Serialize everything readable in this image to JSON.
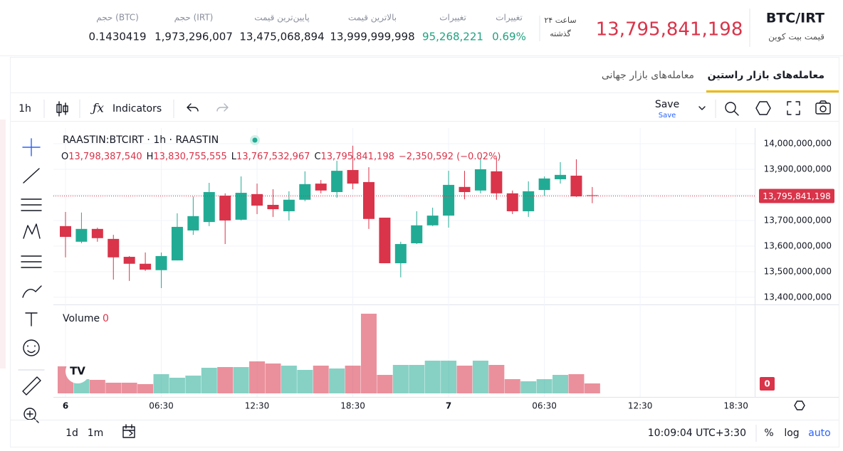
{
  "header": {
    "pair": "BTC/IRT",
    "pair_subtitle": "قیمت بیت کوین",
    "price": "13,795,841,198",
    "period": [
      "۲۴ ساعت",
      "گذشته"
    ],
    "stats": [
      {
        "label": "تغییرات",
        "value": "0.69%"
      },
      {
        "label": "تغییرات",
        "value": "95,268,221"
      },
      {
        "label": "بالاترین قیمت",
        "value": "13,999,999,998"
      },
      {
        "label": "پایین‌ترین قیمت",
        "value": "13,475,068,894"
      },
      {
        "label": "حجم (IRT)",
        "value": "1,973,296,007"
      },
      {
        "label": "حجم (BTC)",
        "value": "0.1430419"
      }
    ]
  },
  "tabs": [
    "معامله‌های بازار راستین",
    "معامله‌های بازار جهانی"
  ],
  "toolbar": {
    "interval": "1h",
    "indicators": "Indicators",
    "save": "Save",
    "save_sub": "Save"
  },
  "chart_data": {
    "type": "candlestick",
    "legend_title": "RAASTIN:BTCIRT · 1h · RAASTIN",
    "legend": [
      {
        "key": "O",
        "value": "13,798,387,540"
      },
      {
        "key": "H",
        "value": "13,830,755,555"
      },
      {
        "key": "L",
        "value": "13,767,532,967"
      },
      {
        "key": "C",
        "value": "13,795,841,198"
      }
    ],
    "change": "−2,350,592 (−0.02%)",
    "last_price_label": "13,795,841,198",
    "volume_title": "Volume",
    "volume_value": "0",
    "volume_tag": "0",
    "x_axis_labels": [
      "6",
      "06:30",
      "12:30",
      "18:30",
      "7",
      "06:30",
      "12:30",
      "18:30"
    ],
    "up_color": "#22ab94",
    "down_color": "#d9344a",
    "ylim": [
      13372000000,
      14061000000
    ],
    "yticks": [
      {
        "value": 14000000000,
        "label": "14,000,000,000"
      },
      {
        "value": 13900000000,
        "label": "13,900,000,000"
      },
      {
        "value": 13800000000,
        "label": "13,800,000,000"
      },
      {
        "value": 13700000000,
        "label": "13,700,000,000"
      },
      {
        "value": 13600000000,
        "label": "13,600,000,000"
      },
      {
        "value": 13500000000,
        "label": "13,500,000,000"
      },
      {
        "value": 13400000000,
        "label": "13,400,000,000"
      }
    ],
    "grid": true,
    "open": [
      13678000000,
      13617000000,
      13667000000,
      13628000000,
      13558000000,
      13531000000,
      13506000000,
      13544000000,
      13661000000,
      13694000000,
      13797000000,
      13703000000,
      13803000000,
      13761000000,
      13736000000,
      13781000000,
      13844000000,
      13811000000,
      13897000000,
      13850000000,
      13711000000,
      13533000000,
      13611000000,
      13681000000,
      13719000000,
      13831000000,
      13817000000,
      13892000000,
      13806000000,
      13736000000,
      13819000000,
      13861000000,
      13875000000,
      13798387540
    ],
    "high": [
      13733000000,
      13731000000,
      13672000000,
      13644000000,
      13561000000,
      13575000000,
      13575000000,
      13728000000,
      13794000000,
      13847000000,
      13806000000,
      13872000000,
      13844000000,
      13822000000,
      13814000000,
      13892000000,
      13858000000,
      13933000000,
      13992000000,
      13908000000,
      13711000000,
      13617000000,
      13736000000,
      13750000000,
      13894000000,
      13894000000,
      13944000000,
      13944000000,
      13817000000,
      13853000000,
      13872000000,
      13928000000,
      13939000000,
      13830755555
    ],
    "low": [
      13556000000,
      13611000000,
      13617000000,
      13469000000,
      13464000000,
      13503000000,
      13436000000,
      13544000000,
      13644000000,
      13678000000,
      13608000000,
      13700000000,
      13725000000,
      13714000000,
      13700000000,
      13775000000,
      13806000000,
      13789000000,
      13822000000,
      13667000000,
      13533000000,
      13478000000,
      13608000000,
      13678000000,
      13672000000,
      13783000000,
      13806000000,
      13781000000,
      13725000000,
      13714000000,
      13797000000,
      13844000000,
      13792000000,
      13767532967
    ],
    "close": [
      13636000000,
      13667000000,
      13631000000,
      13556000000,
      13531000000,
      13508000000,
      13561000000,
      13675000000,
      13717000000,
      13811000000,
      13700000000,
      13808000000,
      13758000000,
      13744000000,
      13781000000,
      13842000000,
      13817000000,
      13894000000,
      13844000000,
      13706000000,
      13533000000,
      13608000000,
      13681000000,
      13719000000,
      13839000000,
      13811000000,
      13900000000,
      13806000000,
      13736000000,
      13814000000,
      13864000000,
      13878000000,
      13794000000,
      13795841198
    ],
    "volume": [
      38,
      20,
      19,
      15,
      15,
      13,
      27,
      22,
      25,
      36,
      37,
      37,
      45,
      42,
      39,
      33,
      39,
      35,
      39,
      112,
      26,
      40,
      40,
      46,
      46,
      39,
      46,
      40,
      20,
      17,
      20,
      26,
      27,
      14
    ]
  },
  "bottom_bar": {
    "ranges": [
      "1d",
      "1m"
    ],
    "clock": "10:09:04 UTC+3:30",
    "percent": "%",
    "log": "log",
    "auto": "auto"
  }
}
